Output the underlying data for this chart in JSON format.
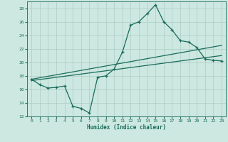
{
  "xlabel": "Humidex (Indice chaleur)",
  "ylabel": "",
  "background_color": "#cce8e0",
  "grid_color": "#aaccc4",
  "line_color": "#1a6b5a",
  "xlim": [
    -0.5,
    23.5
  ],
  "ylim": [
    12,
    29
  ],
  "xticks": [
    0,
    1,
    2,
    3,
    4,
    5,
    6,
    7,
    8,
    9,
    10,
    11,
    12,
    13,
    14,
    15,
    16,
    17,
    18,
    19,
    20,
    21,
    22,
    23
  ],
  "yticks": [
    12,
    14,
    16,
    18,
    20,
    22,
    24,
    26,
    28
  ],
  "main_y": [
    17.5,
    16.7,
    16.2,
    16.3,
    16.5,
    13.5,
    13.2,
    12.5,
    17.8,
    18.0,
    19.0,
    21.5,
    25.5,
    26.0,
    27.2,
    28.5,
    26.0,
    24.8,
    23.2,
    23.0,
    22.2,
    20.5,
    20.3,
    20.2
  ],
  "line1_x": [
    0,
    23
  ],
  "line1_y": [
    17.5,
    22.5
  ],
  "line2_x": [
    0,
    23
  ],
  "line2_y": [
    17.3,
    21.0
  ]
}
